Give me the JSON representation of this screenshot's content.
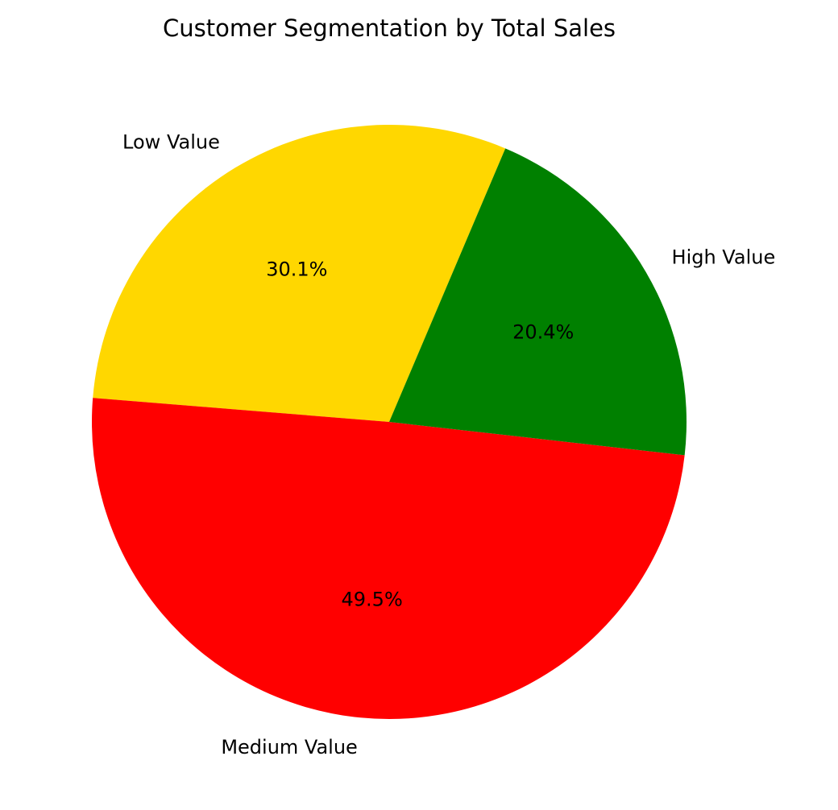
{
  "chart_data": {
    "type": "pie",
    "title": "Customer Segmentation by Total Sales",
    "slices": [
      {
        "label": "Low Value",
        "value": 30.1,
        "pct_label": "30.1%",
        "color": "#FFD700"
      },
      {
        "label": "Medium Value",
        "value": 49.5,
        "pct_label": "49.5%",
        "color": "#FF0000"
      },
      {
        "label": "High Value",
        "value": 20.4,
        "pct_label": "20.4%",
        "color": "#008000"
      }
    ],
    "start_angle_deg": 67,
    "direction": "counterclockwise",
    "legend": "none"
  }
}
